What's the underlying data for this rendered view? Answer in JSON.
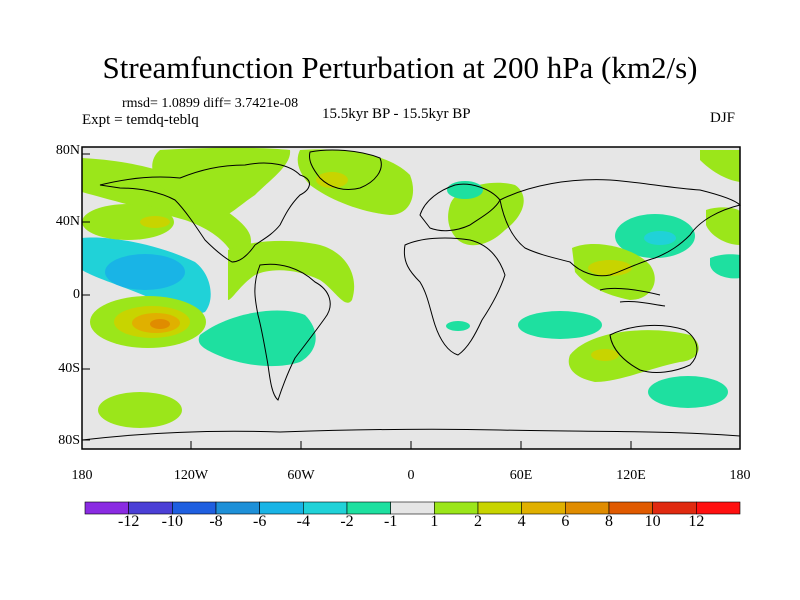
{
  "title": "Streamfunction Perturbation at 200 hPa (km2/s)",
  "stats": "rmsd= 1.0899  diff= 3.7421e-08",
  "experiment": "Expt = temdq-teblq",
  "period": "15.5kyr BP - 15.5kyr BP",
  "season": "DJF",
  "lat_labels": [
    "80N",
    "40N",
    "0",
    "40S",
    "80S"
  ],
  "lon_labels": [
    "180",
    "120W",
    "60W",
    "0",
    "60E",
    "120E",
    "180"
  ],
  "colorbar": {
    "levels": [
      "-12",
      "-10",
      "-8",
      "-6",
      "-4",
      "-2",
      "-1",
      "1",
      "2",
      "4",
      "6",
      "8",
      "10",
      "12"
    ],
    "colors": [
      "#8a2be2",
      "#4b3fd6",
      "#1f5fe0",
      "#1e90d8",
      "#19b4e6",
      "#20d2d8",
      "#1ee0a0",
      "#e6e6e6",
      "#9be61a",
      "#c8d400",
      "#e0b000",
      "#e08c00",
      "#e05a00",
      "#e02a10",
      "#ff1010"
    ]
  },
  "map_background": "#e6e6e6"
}
